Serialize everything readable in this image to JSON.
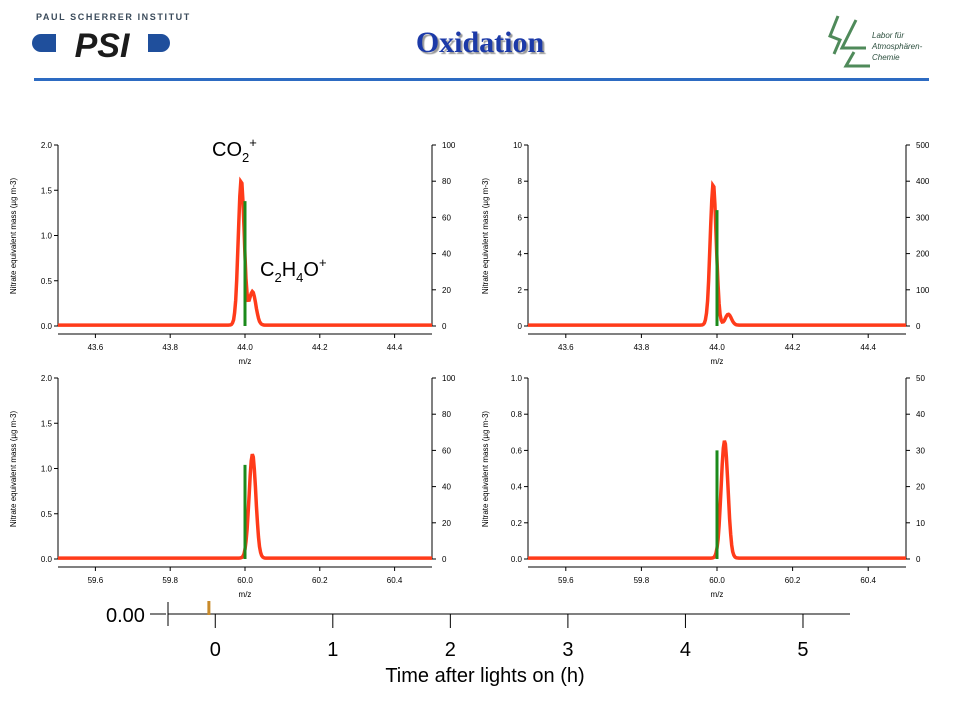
{
  "header": {
    "institute": "PAUL SCHERRER INSTITUT",
    "logo_text": "PSI",
    "title": "Oxidation",
    "lab_line1": "Labor für",
    "lab_line2": "Atmosphären-",
    "lab_line3": "Chemie"
  },
  "annotations": {
    "co2_label": "CO",
    "co2_sub": "2",
    "co2_sup": "+",
    "c2h4o_c": "C",
    "c2h4o_sub1": "2",
    "c2h4o_h": "H",
    "c2h4o_sub2": "4",
    "c2h4o_o": "O",
    "c2h4o_sup": "+"
  },
  "chart_data": [
    {
      "type": "line",
      "xlabel": "m/z",
      "ylabel": "Nitrate equivalent mass (µg m-3)",
      "xlim": [
        43.5,
        44.5
      ],
      "ylim": [
        0,
        2.0
      ],
      "y2lim": [
        0,
        100
      ],
      "xticks": [
        "43.6",
        "43.8",
        "44.0",
        "44.2",
        "44.4"
      ],
      "yticks": [
        "0.0",
        "0.5",
        "1.0",
        "1.5",
        "2.0"
      ],
      "y2ticks": [
        "0",
        "20",
        "40",
        "60",
        "80",
        "100"
      ],
      "series": [
        {
          "color": "#ff3b1a",
          "peaks": [
            {
              "x": 43.99,
              "y": 1.6,
              "w": 0.008
            },
            {
              "x": 44.02,
              "y": 0.37,
              "w": 0.009
            }
          ],
          "baseline": 0.01
        },
        {
          "color": "#1b8a1b",
          "bars": [
            {
              "x": 44.0,
              "y": 1.38
            }
          ]
        }
      ]
    },
    {
      "type": "line",
      "xlabel": "m/z",
      "ylabel": "Nitrate equivalent mass (µg m-3)",
      "xlim": [
        43.5,
        44.5
      ],
      "ylim": [
        0,
        10
      ],
      "y2lim": [
        0,
        500
      ],
      "xticks": [
        "43.6",
        "43.8",
        "44.0",
        "44.2",
        "44.4"
      ],
      "yticks": [
        "0",
        "2",
        "4",
        "6",
        "8",
        "10"
      ],
      "y2ticks": [
        "0",
        "100",
        "200",
        "300",
        "400",
        "500"
      ],
      "series": [
        {
          "color": "#ff3b1a",
          "peaks": [
            {
              "x": 43.99,
              "y": 7.8,
              "w": 0.008
            },
            {
              "x": 44.03,
              "y": 0.6,
              "w": 0.008
            }
          ],
          "baseline": 0.05
        },
        {
          "color": "#1b8a1b",
          "bars": [
            {
              "x": 44.0,
              "y": 6.4
            }
          ]
        }
      ]
    },
    {
      "type": "line",
      "xlabel": "m/z",
      "ylabel": "Nitrate equivalent mass (µg m-3)",
      "xlim": [
        59.5,
        60.5
      ],
      "ylim": [
        0,
        2.0
      ],
      "y2lim": [
        0,
        100
      ],
      "xticks": [
        "59.6",
        "59.8",
        "60.0",
        "60.2",
        "60.4"
      ],
      "yticks": [
        "0.0",
        "0.5",
        "1.0",
        "1.5",
        "2.0"
      ],
      "y2ticks": [
        "0",
        "20",
        "40",
        "60",
        "80",
        "100"
      ],
      "series": [
        {
          "color": "#ff3b1a",
          "peaks": [
            {
              "x": 60.02,
              "y": 1.15,
              "w": 0.009
            }
          ],
          "baseline": 0.01
        },
        {
          "color": "#1b8a1b",
          "bars": [
            {
              "x": 60.0,
              "y": 1.04
            }
          ]
        }
      ]
    },
    {
      "type": "line",
      "xlabel": "m/z",
      "ylabel": "Nitrate equivalent mass (µg m-3)",
      "xlim": [
        59.5,
        60.5
      ],
      "ylim": [
        0,
        1.0
      ],
      "y2lim": [
        0,
        50
      ],
      "xticks": [
        "59.6",
        "59.8",
        "60.0",
        "60.2",
        "60.4"
      ],
      "yticks": [
        "0.0",
        "0.2",
        "0.4",
        "0.6",
        "0.8",
        "1.0"
      ],
      "y2ticks": [
        "0",
        "10",
        "20",
        "30",
        "40",
        "50"
      ],
      "series": [
        {
          "color": "#ff3b1a",
          "peaks": [
            {
              "x": 60.02,
              "y": 0.65,
              "w": 0.009
            }
          ],
          "baseline": 0.005
        },
        {
          "color": "#1b8a1b",
          "bars": [
            {
              "x": 60.0,
              "y": 0.6
            }
          ]
        }
      ]
    },
    {
      "type": "timeline",
      "xlabel": "Time after lights on (h)",
      "xlim": [
        -0.3,
        5.4
      ],
      "xticks": [
        "0",
        "1",
        "2",
        "3",
        "4",
        "5"
      ],
      "readout": "0.00",
      "marker_x": -0.05
    }
  ]
}
